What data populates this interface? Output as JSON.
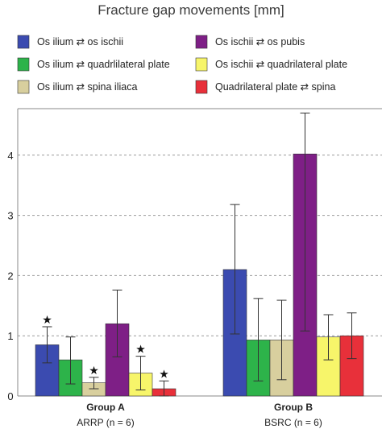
{
  "chart_data": {
    "type": "bar",
    "title": "Fracture gap movements [mm]",
    "categories": [
      "Group A",
      "Group B"
    ],
    "category_sublabels": [
      "ARRP (n = 6)",
      "BSRC (n = 6)"
    ],
    "ylim": [
      0,
      4.7
    ],
    "yticks": [
      "0",
      "1",
      "2",
      "3",
      "4"
    ],
    "grid": "horizontal dashed",
    "legend_position": "top",
    "marker_symbol": "★",
    "series": [
      {
        "name": "Os ilium ⇄ os ischii",
        "color": "#3b4bb0",
        "values": [
          0.85,
          2.1
        ],
        "err_low": [
          0.55,
          1.03
        ],
        "err_high": [
          1.15,
          3.18
        ],
        "marked": [
          true,
          false
        ]
      },
      {
        "name": "Os ilium ⇄ quadrlilateral plate",
        "color": "#2db34a",
        "values": [
          0.6,
          0.93
        ],
        "err_low": [
          0.2,
          0.25
        ],
        "err_high": [
          0.98,
          1.62
        ],
        "marked": [
          false,
          false
        ]
      },
      {
        "name": "Os ilium ⇄ spina iliaca",
        "color": "#d8cf9e",
        "values": [
          0.22,
          0.93
        ],
        "err_low": [
          0.12,
          0.27
        ],
        "err_high": [
          0.31,
          1.59
        ],
        "marked": [
          true,
          false
        ]
      },
      {
        "name": "Os ischii ⇄ os pubis",
        "color": "#7e1f86",
        "values": [
          1.2,
          4.02
        ],
        "err_low": [
          0.65,
          1.08
        ],
        "err_high": [
          1.76,
          4.7
        ],
        "marked": [
          false,
          false
        ]
      },
      {
        "name": "Os ischii ⇄ quadrilateral plate",
        "color": "#f7f56a",
        "values": [
          0.38,
          0.98
        ],
        "err_low": [
          0.1,
          0.6
        ],
        "err_high": [
          0.66,
          1.35
        ],
        "marked": [
          true,
          false
        ]
      },
      {
        "name": "Quadrilateral plate ⇄ spina",
        "color": "#e8303a",
        "values": [
          0.12,
          1.0
        ],
        "err_low": [
          0.0,
          0.62
        ],
        "err_high": [
          0.25,
          1.38
        ],
        "marked": [
          true,
          false
        ]
      }
    ]
  }
}
